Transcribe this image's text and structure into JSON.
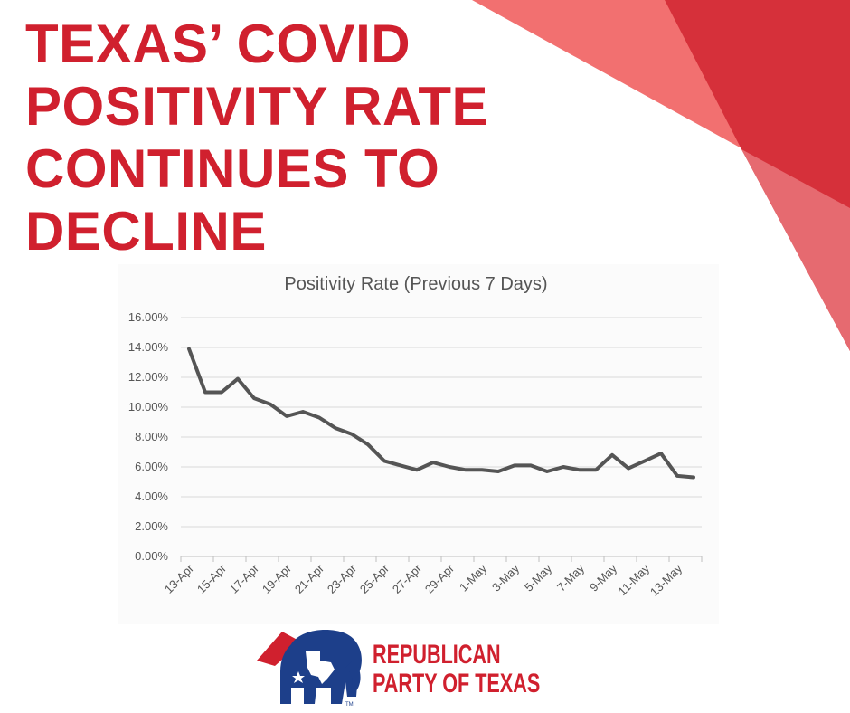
{
  "headline": {
    "lines": [
      "TEXAS’ COVID",
      "POSITIVITY RATE",
      "CONTINUES TO",
      "DECLINE"
    ]
  },
  "colors": {
    "accent_red": "#d0202e",
    "shape_light": "#f06a6a",
    "shape_mid": "#e04a50",
    "shape_dark": "#d42a36",
    "shape_navy": "#1d3f8a",
    "line": "#555555",
    "grid": "#d9d9d9"
  },
  "chart_data": {
    "type": "line",
    "title": "Positivity Rate (Previous 7 Days)",
    "xlabel": "",
    "ylabel": "",
    "categories": [
      "13-Apr",
      "14-Apr",
      "15-Apr",
      "16-Apr",
      "17-Apr",
      "18-Apr",
      "19-Apr",
      "20-Apr",
      "21-Apr",
      "22-Apr",
      "23-Apr",
      "24-Apr",
      "25-Apr",
      "26-Apr",
      "27-Apr",
      "28-Apr",
      "29-Apr",
      "30-Apr",
      "1-May",
      "2-May",
      "3-May",
      "4-May",
      "5-May",
      "6-May",
      "7-May",
      "8-May",
      "9-May",
      "10-May",
      "11-May",
      "12-May",
      "13-May",
      "14-May"
    ],
    "tick_labels": [
      "13-Apr",
      "15-Apr",
      "17-Apr",
      "19-Apr",
      "21-Apr",
      "23-Apr",
      "25-Apr",
      "27-Apr",
      "29-Apr",
      "1-May",
      "3-May",
      "5-May",
      "7-May",
      "9-May",
      "11-May",
      "13-May"
    ],
    "series": [
      {
        "values": [
          13.9,
          11.0,
          11.0,
          11.9,
          10.6,
          10.2,
          9.4,
          9.7,
          9.3,
          8.6,
          8.2,
          7.5,
          6.4,
          6.1,
          5.8,
          6.3,
          6.0,
          5.8,
          5.8,
          5.7,
          6.1,
          6.1,
          5.7,
          6.0,
          5.8,
          5.8,
          6.8,
          5.9,
          6.4,
          6.9,
          5.4,
          5.3
        ]
      }
    ],
    "y_ticks": [
      "0.00%",
      "2.00%",
      "4.00%",
      "6.00%",
      "8.00%",
      "10.00%",
      "12.00%",
      "14.00%",
      "16.00%"
    ],
    "ylim": [
      0,
      16
    ],
    "grid": true,
    "legend": "none"
  },
  "logo": {
    "line1": "REPUBLICAN",
    "line2": "PARTY OF TEXAS",
    "tm": "TM"
  }
}
